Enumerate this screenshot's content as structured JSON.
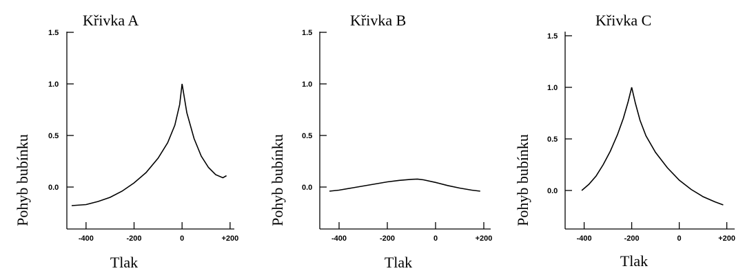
{
  "chart_data": [
    {
      "type": "line",
      "title": "Křivka A",
      "xlabel": "Tlak",
      "ylabel": "Pohyb bubínku",
      "xlim": [
        -480,
        220
      ],
      "ylim": [
        -0.43,
        1.5
      ],
      "xticks": [
        -400,
        -200,
        0,
        200
      ],
      "xtick_labels": [
        "-400",
        "-200",
        "0",
        "+200"
      ],
      "yticks": [
        0.0,
        0.5,
        1.0,
        1.5
      ],
      "ytick_labels": [
        "0.0",
        "0.5",
        "1.0",
        "1.5"
      ],
      "series": [
        {
          "x": [
            -460,
            -400,
            -350,
            -300,
            -250,
            -200,
            -150,
            -100,
            -60,
            -30,
            -10,
            0,
            20,
            50,
            80,
            110,
            140,
            170,
            185
          ],
          "y": [
            -0.18,
            -0.17,
            -0.14,
            -0.1,
            -0.04,
            0.04,
            0.14,
            0.28,
            0.43,
            0.6,
            0.8,
            1.0,
            0.72,
            0.47,
            0.3,
            0.19,
            0.12,
            0.09,
            0.11
          ]
        }
      ]
    },
    {
      "type": "line",
      "title": "Křivka B",
      "xlabel": "Tlak",
      "ylabel": "Pohyb bubínku",
      "xlim": [
        -480,
        220
      ],
      "ylim": [
        -0.43,
        1.5
      ],
      "xticks": [
        -400,
        -200,
        0,
        200
      ],
      "xtick_labels": [
        "-400",
        "-200",
        "0",
        "+200"
      ],
      "yticks": [
        0.0,
        0.5,
        1.0,
        1.5
      ],
      "ytick_labels": [
        "0.0",
        "0.5",
        "1.0",
        "1.5"
      ],
      "series": [
        {
          "x": [
            -440,
            -400,
            -350,
            -300,
            -250,
            -200,
            -150,
            -100,
            -75,
            -50,
            0,
            50,
            100,
            150,
            185
          ],
          "y": [
            -0.04,
            -0.03,
            -0.01,
            0.01,
            0.03,
            0.05,
            0.065,
            0.075,
            0.077,
            0.07,
            0.045,
            0.015,
            -0.01,
            -0.03,
            -0.04
          ]
        }
      ]
    },
    {
      "type": "line",
      "title": "Křivka C",
      "xlabel": "Tlak",
      "ylabel": "Pohyb bubínku",
      "xlim": [
        -480,
        220
      ],
      "ylim": [
        -0.43,
        1.5
      ],
      "xticks": [
        -400,
        -200,
        0,
        200
      ],
      "xtick_labels": [
        "-400",
        "-200",
        "0",
        "+200"
      ],
      "yticks": [
        0.0,
        0.5,
        1.0,
        1.5
      ],
      "ytick_labels": [
        "0.0",
        "0.5",
        "1.0",
        "1.5"
      ],
      "series": [
        {
          "x": [
            -410,
            -380,
            -350,
            -320,
            -290,
            -260,
            -235,
            -215,
            -200,
            -185,
            -165,
            -140,
            -100,
            -50,
            0,
            50,
            100,
            150,
            185
          ],
          "y": [
            0.0,
            0.06,
            0.14,
            0.25,
            0.38,
            0.54,
            0.7,
            0.86,
            1.0,
            0.85,
            0.68,
            0.53,
            0.37,
            0.22,
            0.1,
            0.01,
            -0.06,
            -0.11,
            -0.14
          ]
        }
      ]
    }
  ]
}
